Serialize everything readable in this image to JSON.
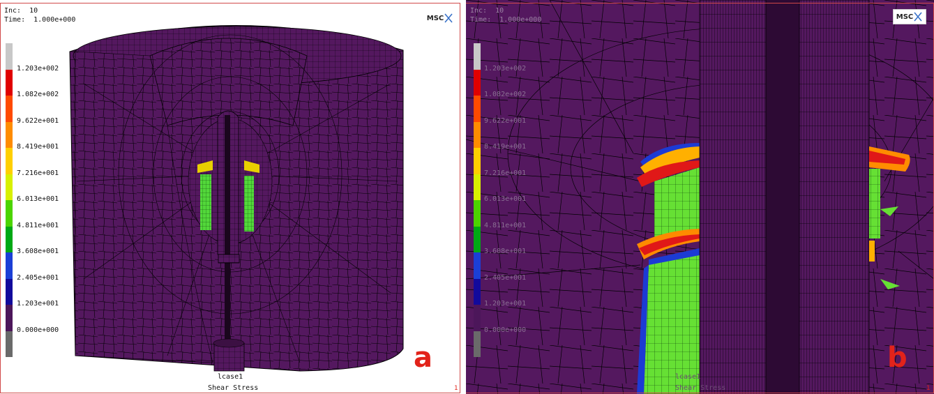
{
  "panel_a": {
    "inc_label": "Inc:  10",
    "time_label": "Time:  1.000e+000",
    "logo_text": "MSC",
    "legend_ticks": [
      "1.203e+002",
      "1.082e+002",
      "9.622e+001",
      "8.419e+001",
      "7.216e+001",
      "6.013e+001",
      "4.811e+001",
      "3.608e+001",
      "2.405e+001",
      "1.203e+001",
      "0.000e+000"
    ],
    "loadcase": "lcase1",
    "result_name": "Shear Stress",
    "panel_letter": "a",
    "corner_number": "1"
  },
  "panel_b": {
    "inc_label": "Inc:  10",
    "time_label": "Time:  1.000e+000",
    "logo_text": "MSC",
    "legend_ticks": [
      "1.203e+002",
      "1.082e+002",
      "9.622e+001",
      "8.419e+001",
      "7.216e+001",
      "6.013e+001",
      "4.811e+001",
      "3.608e+001",
      "2.405e+001",
      "1.203e+001",
      "0.000e+000"
    ],
    "loadcase": "lcase1",
    "result_name": "Shear Stress",
    "panel_letter": "b",
    "corner_number": "1"
  },
  "legend_colors": [
    "#c8c8c8",
    "#e00000",
    "#ff4a00",
    "#ff8c00",
    "#ffcf00",
    "#d8f000",
    "#4cd400",
    "#00a814",
    "#1b3fd6",
    "#120a9c",
    "#4c165a",
    "#6a6a6a"
  ],
  "colors": {
    "mesh_base": "#54185f",
    "mesh_line": "#000000",
    "label_red": "#e2231a"
  }
}
